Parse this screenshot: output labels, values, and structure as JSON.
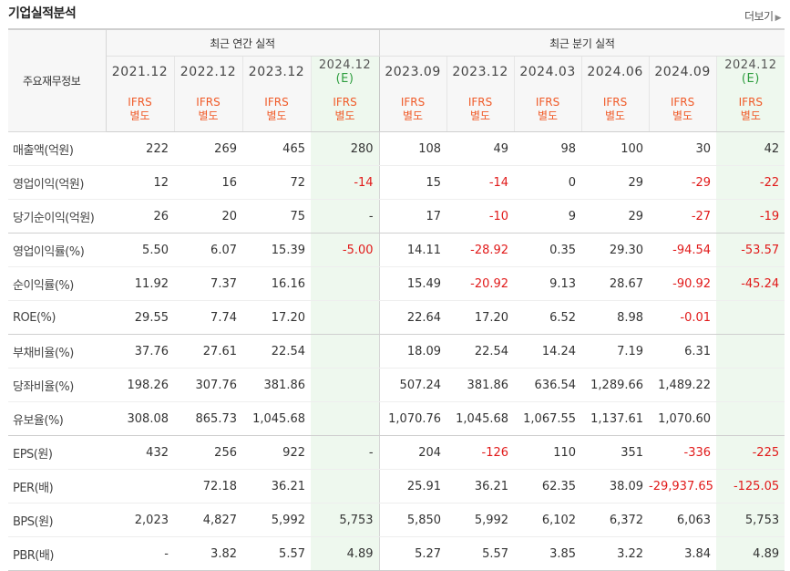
{
  "page_title": "기업실적분석",
  "more_label": "더보기",
  "table": {
    "corner_label": "주요재무정보",
    "annual_group_label": "최근 연간 실적",
    "quarter_group_label": "최근 분기 실적",
    "annual_periods": [
      "2021.12",
      "2022.12",
      "2023.12",
      "2024.12"
    ],
    "annual_estimate_mark": "(E)",
    "quarter_periods": [
      "2023.09",
      "2023.12",
      "2024.03",
      "2024.06",
      "2024.09",
      "2024.12"
    ],
    "quarter_estimate_mark": "(E)",
    "standard_line1": "IFRS",
    "standard_line2": "별도",
    "rows": [
      {
        "label": "매출액(억원)",
        "values": [
          "222",
          "269",
          "465",
          "280",
          "108",
          "49",
          "98",
          "100",
          "30",
          "42"
        ]
      },
      {
        "label": "영업이익(억원)",
        "values": [
          "12",
          "16",
          "72",
          "-14",
          "15",
          "-14",
          "0",
          "29",
          "-29",
          "-22"
        ]
      },
      {
        "label": "당기순이익(억원)",
        "values": [
          "26",
          "20",
          "75",
          "-",
          "17",
          "-10",
          "9",
          "29",
          "-27",
          "-19"
        ]
      },
      {
        "label": "영업이익률(%)",
        "values": [
          "5.50",
          "6.07",
          "15.39",
          "-5.00",
          "14.11",
          "-28.92",
          "0.35",
          "29.30",
          "-94.54",
          "-53.57"
        ]
      },
      {
        "label": "순이익률(%)",
        "values": [
          "11.92",
          "7.37",
          "16.16",
          "",
          "15.49",
          "-20.92",
          "9.13",
          "28.67",
          "-90.92",
          "-45.24"
        ]
      },
      {
        "label": "ROE(%)",
        "values": [
          "29.55",
          "7.74",
          "17.20",
          "",
          "22.64",
          "17.20",
          "6.52",
          "8.98",
          "-0.01",
          ""
        ]
      },
      {
        "label": "부채비율(%)",
        "values": [
          "37.76",
          "27.61",
          "22.54",
          "",
          "18.09",
          "22.54",
          "14.24",
          "7.19",
          "6.31",
          ""
        ]
      },
      {
        "label": "당좌비율(%)",
        "values": [
          "198.26",
          "307.76",
          "381.86",
          "",
          "507.24",
          "381.86",
          "636.54",
          "1,289.66",
          "1,489.22",
          ""
        ]
      },
      {
        "label": "유보율(%)",
        "values": [
          "308.08",
          "865.73",
          "1,045.68",
          "",
          "1,070.76",
          "1,045.68",
          "1,067.55",
          "1,137.61",
          "1,070.60",
          ""
        ]
      },
      {
        "label": "EPS(원)",
        "values": [
          "432",
          "256",
          "922",
          "-",
          "204",
          "-126",
          "110",
          "351",
          "-336",
          "-225"
        ]
      },
      {
        "label": "PER(배)",
        "values": [
          "",
          "72.18",
          "36.21",
          "",
          "25.91",
          "36.21",
          "62.35",
          "38.09",
          "-29,937.65",
          "-125.05"
        ]
      },
      {
        "label": "BPS(원)",
        "values": [
          "2,023",
          "4,827",
          "5,992",
          "5,753",
          "5,850",
          "5,992",
          "6,102",
          "6,372",
          "6,063",
          "5,753"
        ]
      },
      {
        "label": "PBR(배)",
        "values": [
          "-",
          "3.82",
          "5.57",
          "4.89",
          "5.27",
          "5.57",
          "3.85",
          "3.22",
          "3.84",
          "4.89"
        ]
      }
    ]
  },
  "colors": {
    "negative": "#e11a1a",
    "ifrs_label": "#f05a28",
    "estimate_bg": "#eef8ee",
    "estimate_mark": "#2e9e3f"
  }
}
